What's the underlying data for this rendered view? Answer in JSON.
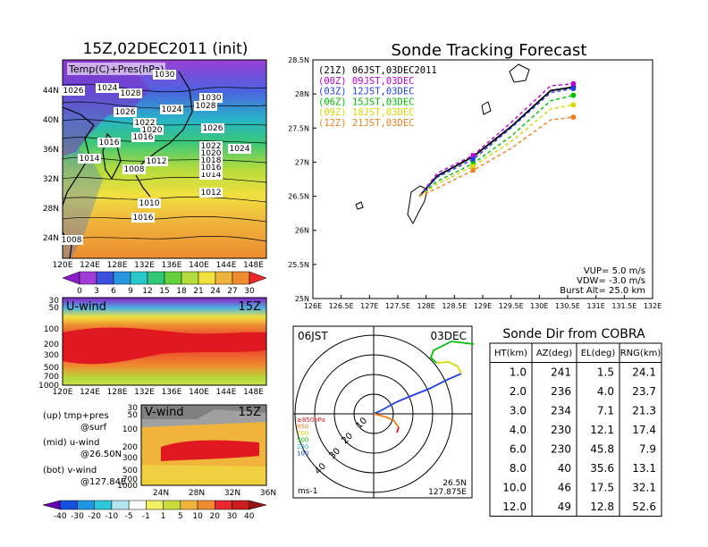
{
  "colors": {
    "nc": "#6e00c8",
    "z00": "#c000d8",
    "z03": "#2040e8",
    "z06": "#00c000",
    "z09": "#d8d800",
    "z12": "#f08020"
  },
  "left": {
    "map_title": "15Z,02DEC2011 (init)",
    "map_label": "Temp(C)+Pres(hPa)",
    "lat_ticks": [
      "44N",
      "40N",
      "36N",
      "32N",
      "28N",
      "24N"
    ],
    "lon_ticks": [
      "120E",
      "124E",
      "128E",
      "132E",
      "136E",
      "140E",
      "144E",
      "148E"
    ],
    "isobars": [
      "1030",
      "1026",
      "1024",
      "1028",
      "1026",
      "1024",
      "1030",
      "1028",
      "1022",
      "1020",
      "1016",
      "1016",
      "1026",
      "1014",
      "1012",
      "1022",
      "1020",
      "1018",
      "1024",
      "1014",
      "1016",
      "1008",
      "1012",
      "1010",
      "1016",
      "1008"
    ],
    "temp_bar": [
      "0",
      "3",
      "6",
      "9",
      "12",
      "15",
      "18",
      "21",
      "24",
      "27",
      "30"
    ],
    "u_label": "U-wind",
    "u_time": "15Z",
    "u_ticks": [
      "30",
      "50",
      "100",
      "200",
      "300",
      "500",
      "700",
      "1000"
    ],
    "u_lon": [
      "120E",
      "124E",
      "128E",
      "132E",
      "136E",
      "140E",
      "144E",
      "148E"
    ],
    "v_label": "V-wind",
    "v_time": "15Z",
    "v_ticks": [
      "30",
      "50",
      "100",
      "200",
      "300",
      "500",
      "700",
      "1000"
    ],
    "v_lat": [
      "24N",
      "28N",
      "32N",
      "36N"
    ],
    "legend_lines": [
      "(up) tmp+pres",
      "@surf",
      "(mid) u-wind",
      "@26.50N",
      "(bot) v-wind",
      "@127.84E"
    ],
    "wind_bar": [
      "-40",
      "-30",
      "-20",
      "-10",
      "-5",
      "-1",
      "1",
      "5",
      "10",
      "20",
      "30",
      "40"
    ]
  },
  "forecast": {
    "title": "Sonde Tracking Forecast",
    "legend": [
      "(21Z) 06JST,03DEC2011",
      "(00Z) 09JST,03DEC",
      "(03Z) 12JST,03DEC",
      "(06Z) 15JST,03DEC",
      "(09Z) 18JST,03DEC",
      "(12Z) 21JST,03DEC"
    ],
    "params": [
      "VUP= 5.0 m/s",
      "VDW= -3.0 m/s",
      "Burst Alt= 25.0 km"
    ]
  },
  "polar": {
    "time": "06JST",
    "date": "03DEC",
    "rings": [
      "10",
      "20",
      "30",
      "40"
    ],
    "pressure_legend": [
      "≥850hPa",
      "850",
      "700",
      "500",
      "250",
      "100"
    ],
    "units": "ms-1",
    "lat": "26.5N",
    "lon": "127.875E"
  },
  "table": {
    "title": "Sonde Dir from COBRA",
    "headers": [
      "HT(km)",
      "AZ(deg)",
      "EL(deg)",
      "RNG(km)"
    ],
    "rows": [
      [
        "1.0",
        "241",
        "1.5",
        "24.1"
      ],
      [
        "2.0",
        "236",
        "4.0",
        "23.7"
      ],
      [
        "3.0",
        "234",
        "7.1",
        "21.3"
      ],
      [
        "4.0",
        "230",
        "12.1",
        "17.4"
      ],
      [
        "6.0",
        "230",
        "45.8",
        "7.9"
      ],
      [
        "8.0",
        "40",
        "35.6",
        "13.1"
      ],
      [
        "10.0",
        "46",
        "17.5",
        "32.1"
      ],
      [
        "12.0",
        "49",
        "12.8",
        "52.6"
      ]
    ]
  },
  "chart_data": [
    {
      "type": "line",
      "title": "Sonde Tracking Forecast",
      "xlim": [
        126,
        132
      ],
      "ylim": [
        25,
        28.5
      ],
      "x_ticks": [
        "126E",
        "126.5E",
        "127E",
        "127.5E",
        "128E",
        "128.5E",
        "129E",
        "129.5E",
        "130E",
        "130.5E",
        "131E",
        "131.5E",
        "132E"
      ],
      "y_ticks": [
        "25N",
        "25.5N",
        "26N",
        "26.5N",
        "27N",
        "27.5N",
        "28N",
        "28.5N"
      ],
      "series": [
        {
          "name": "(21Z) 06JST,03DEC2011",
          "lon": [
            127.88,
            128.2,
            128.83,
            129.5,
            130.2,
            130.6
          ],
          "lat": [
            26.5,
            26.8,
            27.08,
            27.52,
            28.05,
            28.1
          ]
        },
        {
          "name": "(00Z) 09JST,03DEC",
          "lon": [
            127.88,
            128.2,
            128.83,
            129.5,
            130.2,
            130.6
          ],
          "lat": [
            26.5,
            26.84,
            27.1,
            27.58,
            28.12,
            28.15
          ]
        },
        {
          "name": "(03Z) 12JST,03DEC",
          "lon": [
            127.88,
            128.2,
            128.83,
            129.5,
            130.2,
            130.6
          ],
          "lat": [
            26.5,
            26.78,
            27.04,
            27.5,
            28.02,
            28.08
          ]
        },
        {
          "name": "(06Z) 15JST,03DEC",
          "lon": [
            127.88,
            128.2,
            128.83,
            129.5,
            130.2,
            130.6
          ],
          "lat": [
            26.5,
            26.72,
            26.98,
            27.38,
            27.9,
            27.98
          ]
        },
        {
          "name": "(09Z) 18JST,03DEC",
          "lon": [
            127.88,
            128.2,
            128.83,
            129.5,
            130.2,
            130.6
          ],
          "lat": [
            26.5,
            26.68,
            26.94,
            27.3,
            27.78,
            27.84
          ]
        },
        {
          "name": "(12Z) 21JST,03DEC",
          "lon": [
            127.88,
            128.2,
            128.83,
            129.5,
            130.2,
            130.6
          ],
          "lat": [
            26.5,
            26.62,
            26.88,
            27.2,
            27.62,
            27.66
          ]
        }
      ]
    }
  ]
}
